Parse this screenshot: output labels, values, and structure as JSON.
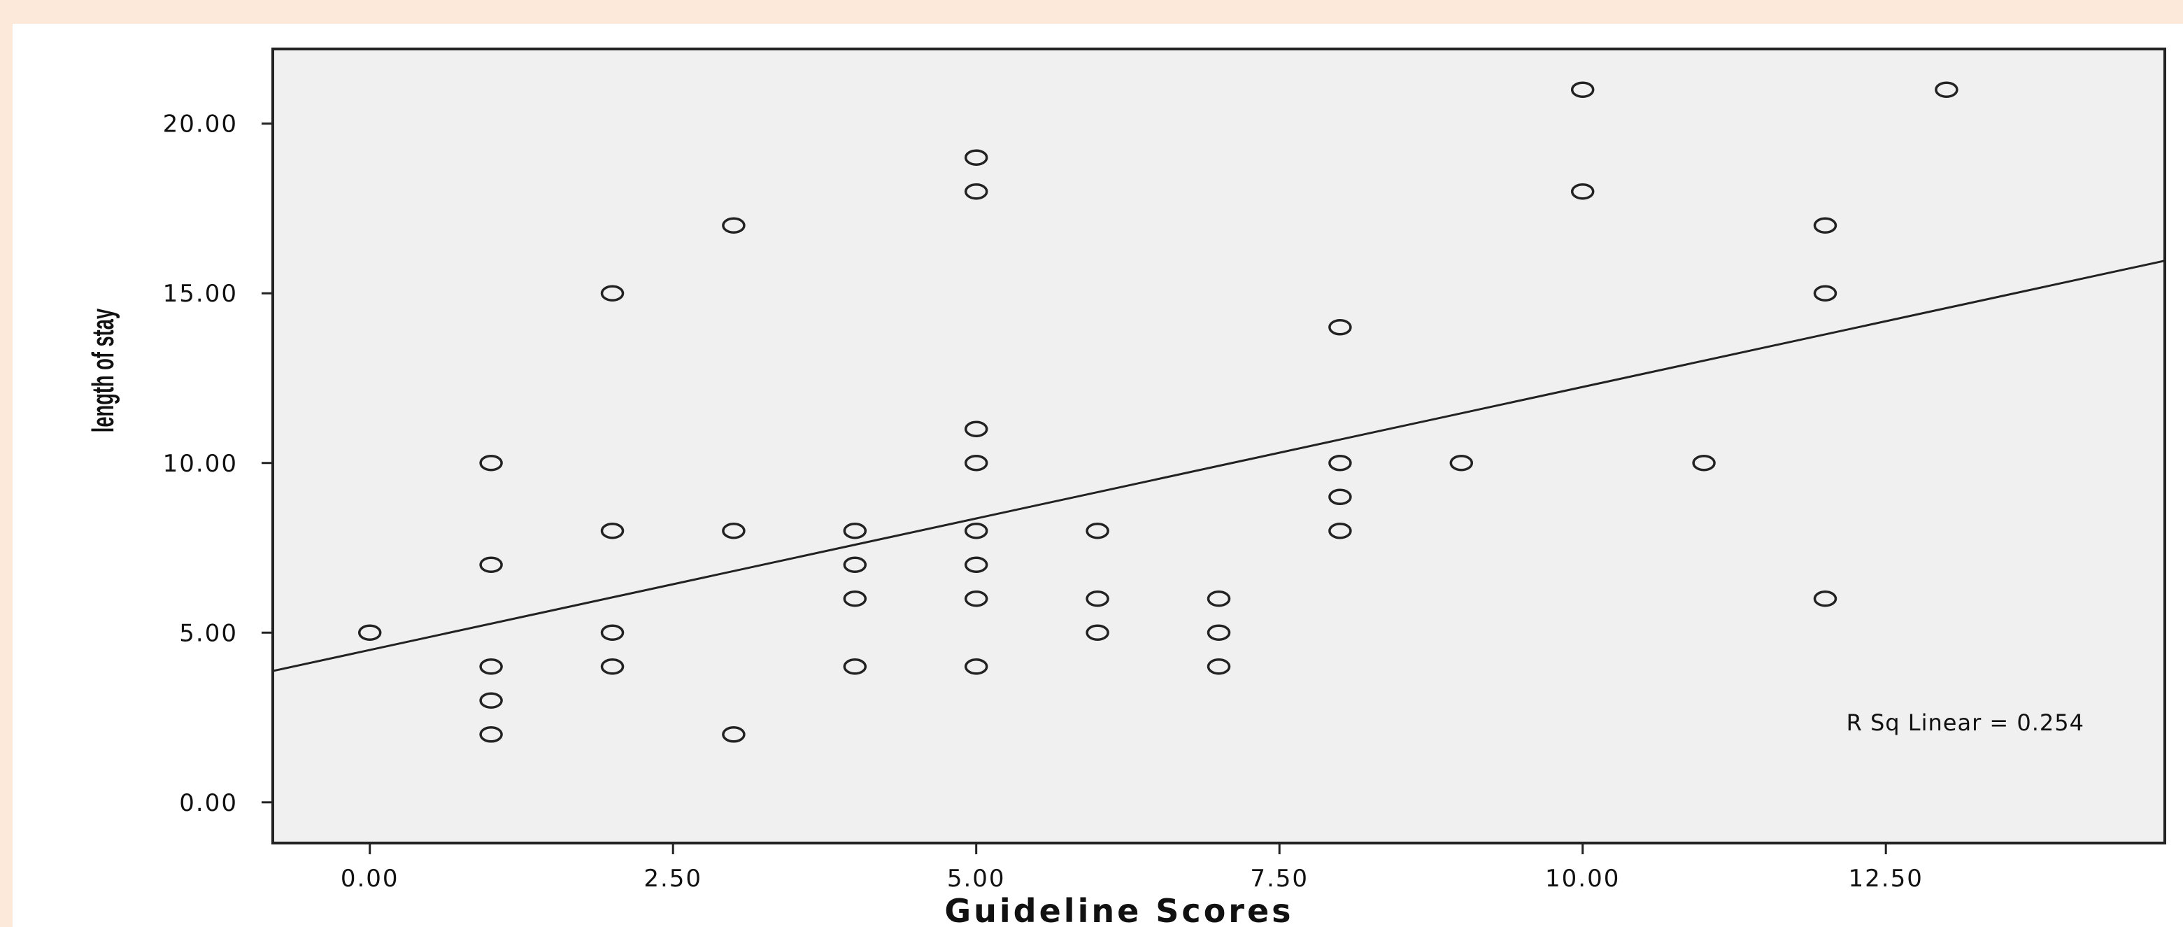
{
  "chart_data": {
    "type": "scatter",
    "xlabel": "Guideline Scores",
    "ylabel": "length of stay",
    "xlim": [
      -0.8,
      14.8
    ],
    "ylim": [
      -1.2,
      22.2
    ],
    "xticks": [
      "0.00",
      "2.50",
      "5.00",
      "7.50",
      "10.00",
      "12.50"
    ],
    "yticks": [
      "0.00",
      "5.00",
      "10.00",
      "15.00",
      "20.00"
    ],
    "points": [
      [
        0,
        5
      ],
      [
        1,
        10
      ],
      [
        1,
        7
      ],
      [
        1,
        4
      ],
      [
        1,
        3
      ],
      [
        1,
        2
      ],
      [
        2,
        15
      ],
      [
        2,
        8
      ],
      [
        2,
        5
      ],
      [
        2,
        4
      ],
      [
        3,
        17
      ],
      [
        3,
        8
      ],
      [
        3,
        2
      ],
      [
        4,
        8
      ],
      [
        4,
        7
      ],
      [
        4,
        6
      ],
      [
        4,
        4
      ],
      [
        5,
        19
      ],
      [
        5,
        18
      ],
      [
        5,
        11
      ],
      [
        5,
        10
      ],
      [
        5,
        8
      ],
      [
        5,
        7
      ],
      [
        5,
        6
      ],
      [
        5,
        4
      ],
      [
        6,
        8
      ],
      [
        6,
        6
      ],
      [
        6,
        5
      ],
      [
        7,
        6
      ],
      [
        7,
        5
      ],
      [
        7,
        4
      ],
      [
        8,
        14
      ],
      [
        8,
        10
      ],
      [
        8,
        9
      ],
      [
        8,
        8
      ],
      [
        9,
        10
      ],
      [
        10,
        21
      ],
      [
        10,
        18
      ],
      [
        11,
        10
      ],
      [
        12,
        17
      ],
      [
        12,
        15
      ],
      [
        12,
        6
      ],
      [
        13,
        21
      ]
    ],
    "fit_line": {
      "intercept": 4.49,
      "slope": 0.775
    },
    "annotation": "R Sq Linear = 0.254",
    "grid": false,
    "colors": {
      "plot_bg": "#f0f0f0",
      "page_bg": "#fde9d9",
      "marker": "#222222",
      "line": "#222222"
    }
  }
}
